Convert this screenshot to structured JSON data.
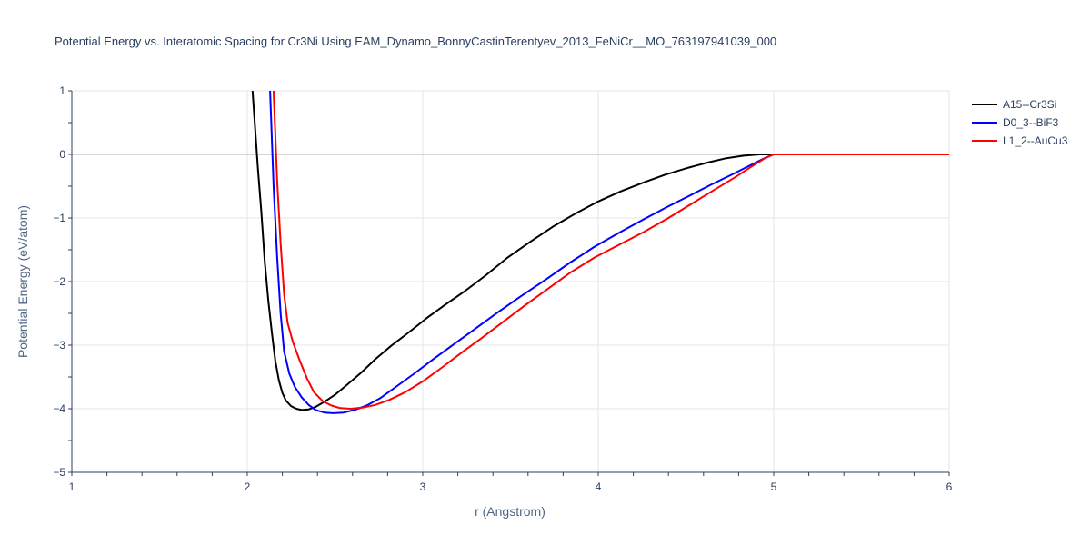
{
  "chart_data": {
    "type": "line",
    "title": "Potential Energy vs. Interatomic Spacing for Cr3Ni Using EAM_Dynamo_BonnyCastinTerentyev_2013_FeNiCr__MO_763197941039_000",
    "xlabel": "r (Angstrom)",
    "ylabel": "Potential Energy (eV/atom)",
    "xlim": [
      1,
      6
    ],
    "ylim": [
      -5,
      1
    ],
    "xticks": [
      1,
      2,
      3,
      4,
      5,
      6
    ],
    "yticks": [
      1,
      0,
      -1,
      -2,
      -3,
      -4,
      -5
    ],
    "ytick_labels": [
      "1",
      "0",
      "−1",
      "−2",
      "−3",
      "−4",
      "−5"
    ],
    "grid": true,
    "legend_position": "top-right",
    "series": [
      {
        "name": "A15--Cr3Si",
        "color": "#000000",
        "x": [
          2.03,
          2.06,
          2.08,
          2.1,
          2.12,
          2.14,
          2.16,
          2.18,
          2.2,
          2.22,
          2.25,
          2.28,
          2.31,
          2.35,
          2.39,
          2.44,
          2.5,
          2.57,
          2.65,
          2.73,
          2.82,
          2.92,
          3.02,
          3.13,
          3.24,
          3.36,
          3.48,
          3.61,
          3.74,
          3.87,
          4.0,
          4.13,
          4.26,
          4.38,
          4.5,
          4.62,
          4.73,
          4.83,
          4.92,
          5.0,
          5.1,
          5.3,
          5.6,
          6.0
        ],
        "y": [
          1.0,
          -0.2,
          -0.9,
          -1.7,
          -2.3,
          -2.8,
          -3.25,
          -3.55,
          -3.75,
          -3.87,
          -3.96,
          -4.0,
          -4.02,
          -4.01,
          -3.97,
          -3.89,
          -3.78,
          -3.62,
          -3.43,
          -3.22,
          -3.01,
          -2.8,
          -2.58,
          -2.36,
          -2.15,
          -1.9,
          -1.63,
          -1.38,
          -1.14,
          -0.93,
          -0.74,
          -0.58,
          -0.44,
          -0.32,
          -0.22,
          -0.13,
          -0.06,
          -0.02,
          0.0,
          0.0,
          0.0,
          0.0,
          0.0,
          0.0
        ]
      },
      {
        "name": "D0_3--BiF3",
        "color": "#0000ff",
        "x": [
          2.13,
          2.15,
          2.17,
          2.19,
          2.21,
          2.24,
          2.27,
          2.31,
          2.35,
          2.39,
          2.44,
          2.49,
          2.55,
          2.61,
          2.68,
          2.76,
          2.85,
          2.95,
          3.06,
          3.18,
          3.3,
          3.43,
          3.56,
          3.7,
          3.84,
          3.98,
          4.12,
          4.26,
          4.39,
          4.52,
          4.64,
          4.76,
          4.86,
          4.94,
          5.0,
          5.1,
          5.3,
          5.6,
          6.0
        ],
        "y": [
          1.0,
          -0.5,
          -1.6,
          -2.5,
          -3.1,
          -3.45,
          -3.65,
          -3.82,
          -3.94,
          -4.02,
          -4.06,
          -4.07,
          -4.06,
          -4.02,
          -3.95,
          -3.83,
          -3.65,
          -3.45,
          -3.22,
          -2.98,
          -2.74,
          -2.48,
          -2.23,
          -1.97,
          -1.7,
          -1.45,
          -1.23,
          -1.02,
          -0.83,
          -0.65,
          -0.48,
          -0.32,
          -0.18,
          -0.07,
          0.0,
          0.0,
          0.0,
          0.0,
          0.0
        ]
      },
      {
        "name": "L1_2--AuCu3",
        "color": "#ff0000",
        "x": [
          2.15,
          2.17,
          2.19,
          2.21,
          2.23,
          2.26,
          2.3,
          2.34,
          2.38,
          2.43,
          2.48,
          2.53,
          2.59,
          2.66,
          2.73,
          2.81,
          2.9,
          3.0,
          3.11,
          3.22,
          3.34,
          3.46,
          3.58,
          3.71,
          3.84,
          3.98,
          4.12,
          4.26,
          4.4,
          4.53,
          4.66,
          4.78,
          4.88,
          4.95,
          5.0,
          5.1,
          5.3,
          5.6,
          6.0
        ],
        "y": [
          1.0,
          -0.4,
          -1.4,
          -2.2,
          -2.65,
          -2.95,
          -3.25,
          -3.52,
          -3.74,
          -3.88,
          -3.95,
          -3.99,
          -4.0,
          -3.98,
          -3.94,
          -3.86,
          -3.74,
          -3.57,
          -3.35,
          -3.12,
          -2.88,
          -2.63,
          -2.38,
          -2.12,
          -1.86,
          -1.62,
          -1.42,
          -1.22,
          -1.0,
          -0.78,
          -0.56,
          -0.36,
          -0.18,
          -0.06,
          0.0,
          0.0,
          0.0,
          0.0,
          0.0
        ]
      }
    ]
  }
}
